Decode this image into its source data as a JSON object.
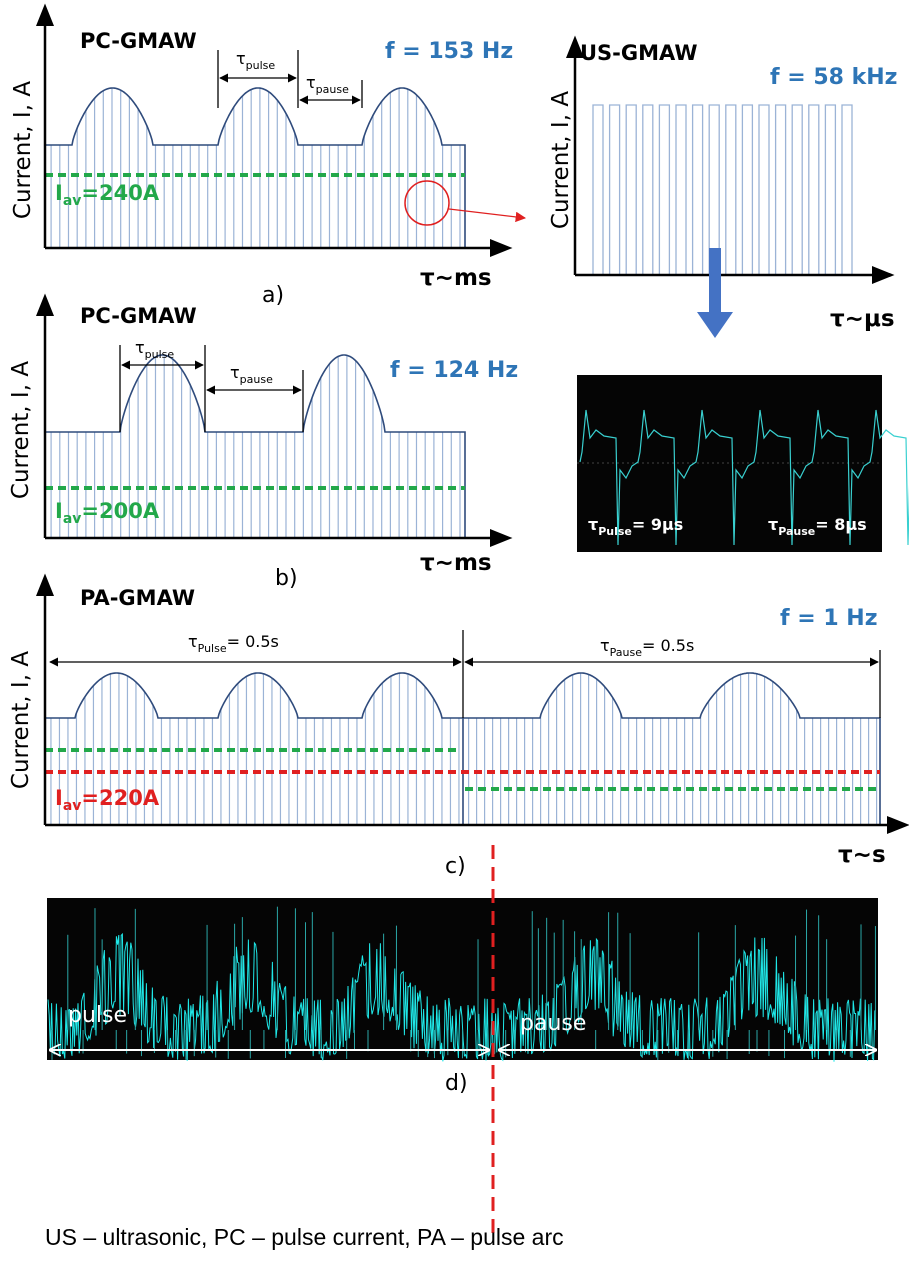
{
  "panel_a": {
    "title": "PC-GMAW",
    "frequency": "f = 153 Hz",
    "y_label": "Current, I, A",
    "x_label": "τ~ms",
    "caption": "a)",
    "tau_pulse": {
      "symbol": "τ",
      "sub": "pulse"
    },
    "tau_pause": {
      "symbol": "τ",
      "sub": "pause"
    },
    "average": {
      "symbol": "I",
      "sub": "av",
      "value": "=240A"
    }
  },
  "panel_us": {
    "title": "US-GMAW",
    "frequency": "f = 58 kHz",
    "y_label": "Current, I, A",
    "x_label": "τ~μs",
    "tau_pulse": {
      "symbol": "τ",
      "sub": "Pulse",
      "value": "= 9μs"
    },
    "tau_pause": {
      "symbol": "τ",
      "sub": "Pause",
      "value": "= 8μs"
    }
  },
  "panel_b": {
    "title": "PC-GMAW",
    "frequency": "f = 124 Hz",
    "y_label": "Current, I, A",
    "x_label": "τ~ms",
    "caption": "b)",
    "tau_pulse": {
      "symbol": "τ",
      "sub": "pulse"
    },
    "tau_pause": {
      "symbol": "τ",
      "sub": "pause"
    },
    "average": {
      "symbol": "I",
      "sub": "av",
      "value": "=200A"
    }
  },
  "panel_c": {
    "title": "PA-GMAW",
    "frequency": "f = 1 Hz",
    "y_label": "Current, I, A",
    "x_label": "τ~s",
    "caption": "c)",
    "tau_pulse": {
      "symbol": "τ",
      "sub": "Pulse",
      "value": "= 0.5s"
    },
    "tau_pause": {
      "symbol": "τ",
      "sub": "Pause",
      "value": "= 0.5s"
    },
    "average": {
      "symbol": "I",
      "sub": "av",
      "value": "=220A"
    }
  },
  "panel_d": {
    "pulse_label": "pulse",
    "pause_label": "pause",
    "caption": "d)"
  },
  "footer": "US – ultrasonic, PC – pulse current, PA – pulse arc"
}
